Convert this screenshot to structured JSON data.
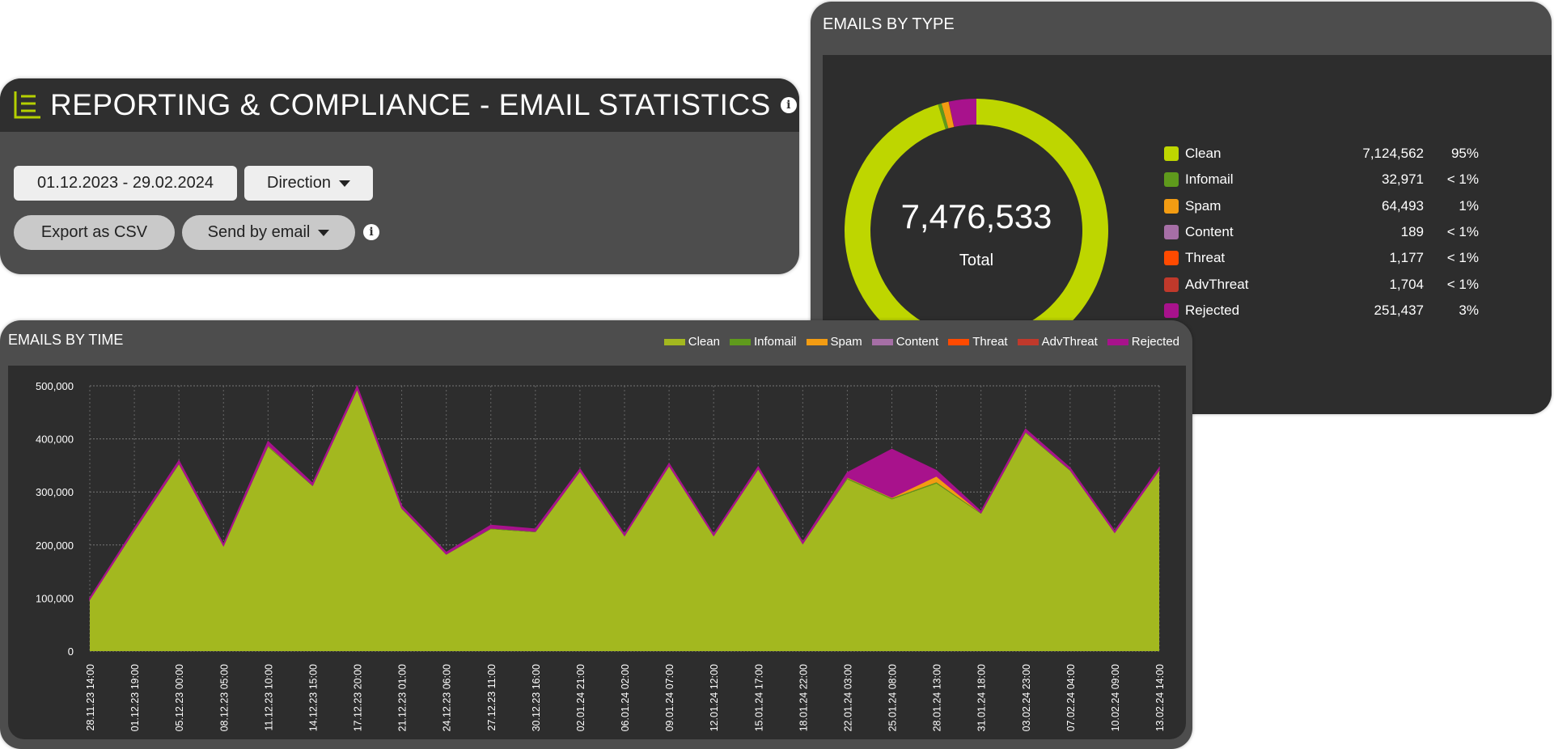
{
  "header": {
    "title": "REPORTING & COMPLIANCE - EMAIL STATISTICS",
    "date_range": "01.12.2023 - 29.02.2024",
    "direction_label": "Direction",
    "export_label": "Export as CSV",
    "send_label": "Send by email",
    "info": "i",
    "accent": "#b5d000"
  },
  "emails_by_type": {
    "title": "EMAILS BY TYPE",
    "total": "7,476,533",
    "total_label": "Total",
    "items": [
      {
        "label": "Clean",
        "value": "7,124,562",
        "pct": "95%",
        "color": "#bed600",
        "n": 7124562
      },
      {
        "label": "Infomail",
        "value": "32,971",
        "pct": "< 1%",
        "color": "#5f9a1c",
        "n": 32971
      },
      {
        "label": "Spam",
        "value": "64,493",
        "pct": "1%",
        "color": "#f39c12",
        "n": 64493
      },
      {
        "label": "Content",
        "value": "189",
        "pct": "< 1%",
        "color": "#a66fa6",
        "n": 189
      },
      {
        "label": "Threat",
        "value": "1,177",
        "pct": "< 1%",
        "color": "#ff4a00",
        "n": 1177
      },
      {
        "label": "AdvThreat",
        "value": "1,704",
        "pct": "< 1%",
        "color": "#c0392b",
        "n": 1704
      },
      {
        "label": "Rejected",
        "value": "251,437",
        "pct": "3%",
        "color": "#a8128c",
        "n": 251437
      }
    ]
  },
  "emails_by_time": {
    "title": "EMAILS BY TIME"
  },
  "chart_data": {
    "type": "area",
    "stacked": true,
    "grid": true,
    "legend": "top-right",
    "ylim": [
      0,
      500000
    ],
    "yticks": [
      "0",
      "100,000",
      "200,000",
      "300,000",
      "400,000",
      "500,000"
    ],
    "categories": [
      "28.11.23 14:00",
      "01.12.23 19:00",
      "05.12.23 00:00",
      "08.12.23 05:00",
      "11.12.23 10:00",
      "14.12.23 15:00",
      "17.12.23 20:00",
      "21.12.23 01:00",
      "24.12.23 06:00",
      "27.12.23 11:00",
      "30.12.23 16:00",
      "02.01.24 21:00",
      "06.01.24 02:00",
      "09.01.24 07:00",
      "12.01.24 12:00",
      "15.01.24 17:00",
      "18.01.24 22:00",
      "22.01.24 03:00",
      "25.01.24 08:00",
      "28.01.24 13:00",
      "31.01.24 18:00",
      "03.02.24 23:00",
      "07.02.24 04:00",
      "10.02.24 09:00",
      "13.02.24 14:00"
    ],
    "series": [
      {
        "name": "Clean",
        "color": "#a3b81f",
        "values": [
          97000,
          226000,
          352000,
          198000,
          385000,
          311000,
          492000,
          268000,
          182000,
          230000,
          224000,
          338000,
          217000,
          348000,
          217000,
          342000,
          202000,
          324000,
          286000,
          316000,
          259000,
          411000,
          340000,
          223000,
          340000
        ]
      },
      {
        "name": "Infomail",
        "color": "#5f9a1c",
        "values": [
          500,
          1000,
          1000,
          500,
          1500,
          1000,
          1000,
          1000,
          500,
          1000,
          1000,
          1000,
          500,
          1000,
          500,
          1000,
          500,
          2000,
          2000,
          2000,
          1000,
          1500,
          1000,
          500,
          1000
        ]
      },
      {
        "name": "Spam",
        "color": "#f39c12",
        "values": [
          500,
          1000,
          1500,
          500,
          2000,
          1000,
          1500,
          1000,
          500,
          1000,
          1000,
          1000,
          500,
          1000,
          500,
          1000,
          500,
          2000,
          2000,
          12000,
          1000,
          1500,
          1000,
          500,
          1000
        ]
      },
      {
        "name": "Content",
        "color": "#a66fa6",
        "values": [
          0,
          0,
          0,
          0,
          0,
          0,
          0,
          0,
          0,
          0,
          0,
          0,
          0,
          0,
          0,
          0,
          0,
          0,
          0,
          0,
          0,
          0,
          0,
          0,
          0
        ]
      },
      {
        "name": "Threat",
        "color": "#ff4a00",
        "values": [
          0,
          0,
          100,
          0,
          100,
          0,
          100,
          0,
          0,
          0,
          0,
          0,
          0,
          100,
          0,
          0,
          0,
          100,
          100,
          100,
          0,
          100,
          0,
          0,
          0
        ]
      },
      {
        "name": "AdvThreat",
        "color": "#c0392b",
        "values": [
          0,
          100,
          100,
          0,
          100,
          100,
          100,
          100,
          0,
          100,
          0,
          100,
          0,
          100,
          0,
          100,
          0,
          100,
          100,
          100,
          0,
          100,
          100,
          0,
          100
        ]
      },
      {
        "name": "Rejected",
        "color": "#a8128c",
        "values": [
          2000,
          3000,
          4000,
          2000,
          6000,
          3000,
          4000,
          3000,
          3000,
          5000,
          4000,
          3000,
          2000,
          3000,
          2000,
          3000,
          2000,
          8000,
          90000,
          10000,
          2000,
          4000,
          3000,
          2000,
          3000
        ]
      }
    ]
  }
}
